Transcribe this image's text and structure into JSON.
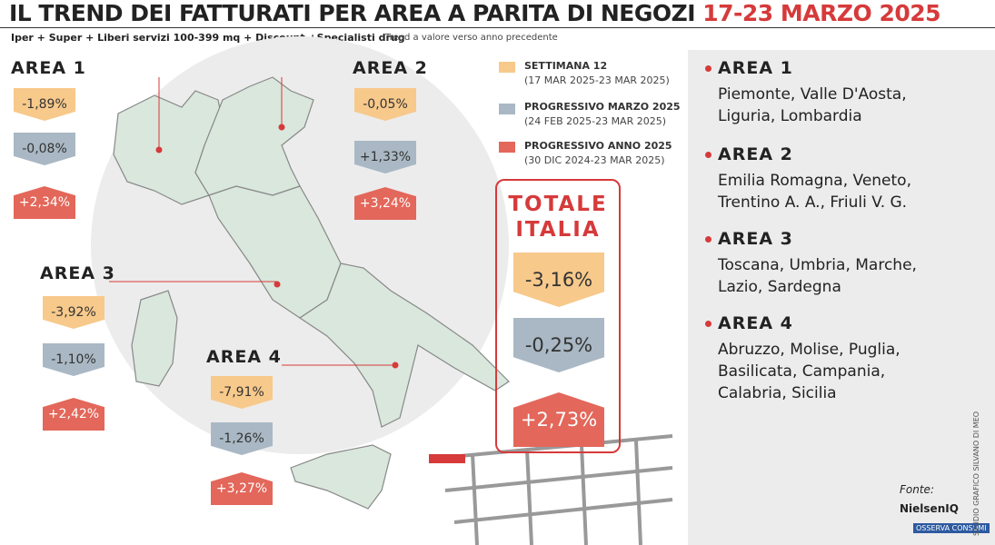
{
  "header": {
    "title": "IL TREND DEI FATTURATI PER AREA A PARITA DI NEGOZI",
    "title_dates": "17-23 MARZO 2025",
    "subtitle": "Iper + Super + Liberi servizi 100-399 mq + Discount +Specialisti drug",
    "note": "Trend a valore verso anno precedente"
  },
  "legend": [
    {
      "label": "SETTIMANA 12",
      "period": "(17 MAR 2025-23 MAR 2025)"
    },
    {
      "label": "PROGRESSIVO MARZO 2025",
      "period": "(24 FEB 2025-23 MAR 2025)"
    },
    {
      "label": "PROGRESSIVO ANNO 2025",
      "period": "(30 DIC 2024-23 MAR 2025)"
    }
  ],
  "areas": [
    {
      "name": "AREA 1",
      "values": [
        "-1,89%",
        "-0,08%",
        "+2,34%"
      ]
    },
    {
      "name": "AREA 2",
      "values": [
        "-0,05%",
        "+1,33%",
        "+3,24%"
      ]
    },
    {
      "name": "AREA 3",
      "values": [
        "-3,92%",
        "-1,10%",
        "+2,42%"
      ]
    },
    {
      "name": "AREA 4",
      "values": [
        "-7,91%",
        "-1,26%",
        "+3,27%"
      ]
    }
  ],
  "totale": {
    "title": [
      "TOTALE",
      "ITALIA"
    ],
    "values": [
      "-3,16%",
      "-0,25%",
      "+2,73%"
    ]
  },
  "regions": [
    {
      "name": "AREA 1",
      "lines": [
        "Piemonte, Valle D'Aosta,",
        "Liguria, Lombardia"
      ]
    },
    {
      "name": "AREA 2",
      "lines": [
        "Emilia Romagna, Veneto,",
        "Trentino A. A., Friuli V. G."
      ]
    },
    {
      "name": "AREA 3",
      "lines": [
        "Toscana, Umbria, Marche,",
        "Lazio, Sardegna"
      ]
    },
    {
      "name": "AREA 4",
      "lines": [
        "Abruzzo, Molise, Puglia,",
        "Basilicata, Campania,",
        "Calabria, Sicilia"
      ]
    }
  ],
  "footer": {
    "source_label": "Fonte:",
    "sources": [
      "NielsenIQ",
      "OSSERVA CONSUMI"
    ],
    "credit": "STUDIO GRAFICO SILVANO DI MEO"
  }
}
